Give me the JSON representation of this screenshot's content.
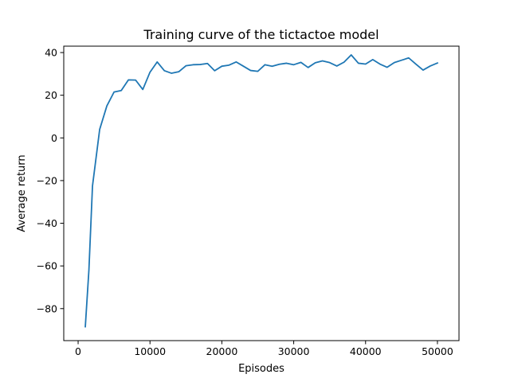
{
  "chart_data": {
    "type": "line",
    "title": "Training curve of the tictactoe model",
    "xlabel": "Episodes",
    "ylabel": "Average return",
    "xlim": [
      -2000,
      53000
    ],
    "ylim": [
      -95,
      43
    ],
    "grid": false,
    "legend": "none",
    "color": "#1f77b4",
    "xticks": [
      {
        "value": 0,
        "label": "0"
      },
      {
        "value": 10000,
        "label": "10000"
      },
      {
        "value": 20000,
        "label": "20000"
      },
      {
        "value": 30000,
        "label": "30000"
      },
      {
        "value": 40000,
        "label": "40000"
      },
      {
        "value": 50000,
        "label": "50000"
      }
    ],
    "yticks": [
      {
        "value": -80,
        "label": "−80"
      },
      {
        "value": -60,
        "label": "−60"
      },
      {
        "value": -40,
        "label": "−40"
      },
      {
        "value": -20,
        "label": "−20"
      },
      {
        "value": 0,
        "label": "0"
      },
      {
        "value": 20,
        "label": "20"
      },
      {
        "value": 40,
        "label": "40"
      }
    ],
    "x": [
      1000,
      1500,
      2000,
      3000,
      4000,
      5000,
      6000,
      7000,
      8000,
      9000,
      10000,
      11000,
      12000,
      13000,
      14000,
      15000,
      16000,
      17000,
      18000,
      19000,
      20000,
      21000,
      22000,
      23000,
      24000,
      25000,
      26000,
      27000,
      28000,
      29000,
      30000,
      31000,
      32000,
      33000,
      34000,
      35000,
      36000,
      37000,
      38000,
      39000,
      40000,
      41000,
      42000,
      43000,
      44000,
      45000,
      46000,
      47000,
      48000,
      49000,
      50000
    ],
    "y": [
      -88.5,
      -62,
      -22.5,
      4,
      15,
      21.5,
      22.2,
      27.2,
      27.1,
      22.7,
      30.8,
      35.6,
      31.5,
      30.3,
      31,
      33.8,
      34.3,
      34.4,
      34.9,
      31.5,
      33.6,
      34.1,
      35.6,
      33.6,
      31.6,
      31.2,
      34.3,
      33.6,
      34.5,
      35,
      34.3,
      35.4,
      33,
      35.2,
      36.1,
      35.3,
      33.7,
      35.5,
      38.9,
      35,
      34.6,
      36.7,
      34.6,
      33.1,
      35.3,
      36.4,
      37.5,
      34.6,
      31.8,
      33.7,
      35.1
    ]
  }
}
